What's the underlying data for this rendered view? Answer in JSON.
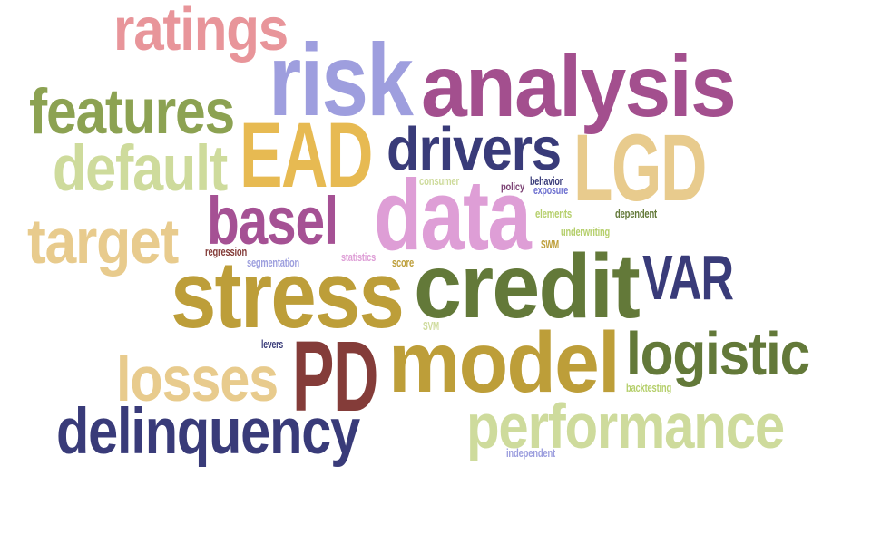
{
  "words": [
    {
      "text": "ratings",
      "color": "#e8959a"
    },
    {
      "text": "risk",
      "color": "#9e9ede"
    },
    {
      "text": "analysis",
      "color": "#a34f8e"
    },
    {
      "text": "features",
      "color": "#8ca252"
    },
    {
      "text": "EAD",
      "color": "#e7ba52"
    },
    {
      "text": "drivers",
      "color": "#393b79"
    },
    {
      "text": "LGD",
      "color": "#e8cb8d"
    },
    {
      "text": "default",
      "color": "#cedb9c"
    },
    {
      "text": "data",
      "color": "#de9ed6"
    },
    {
      "text": "basel",
      "color": "#a55194"
    },
    {
      "text": "target",
      "color": "#e8cb8d"
    },
    {
      "text": "stress",
      "color": "#bd9e39"
    },
    {
      "text": "credit",
      "color": "#637939"
    },
    {
      "text": "VAR",
      "color": "#393b79"
    },
    {
      "text": "PD",
      "color": "#843c39"
    },
    {
      "text": "model",
      "color": "#bd9e39"
    },
    {
      "text": "logistic",
      "color": "#637939"
    },
    {
      "text": "losses",
      "color": "#e8cb8d"
    },
    {
      "text": "delinquency",
      "color": "#393b79"
    },
    {
      "text": "performance",
      "color": "#cedb9c"
    },
    {
      "text": "consumer",
      "color": "#cedb9c"
    },
    {
      "text": "behavior",
      "color": "#393b79"
    },
    {
      "text": "policy",
      "color": "#7b4173"
    },
    {
      "text": "exposure",
      "color": "#6b6ecf"
    },
    {
      "text": "elements",
      "color": "#b5cf6b"
    },
    {
      "text": "dependent",
      "color": "#637939"
    },
    {
      "text": "underwriting",
      "color": "#b5cf6b"
    },
    {
      "text": "regression",
      "color": "#843c39"
    },
    {
      "text": "SWM",
      "color": "#bd9e39"
    },
    {
      "text": "segmentation",
      "color": "#9c9ede"
    },
    {
      "text": "statistics",
      "color": "#de9ed6"
    },
    {
      "text": "score",
      "color": "#bd9e39"
    },
    {
      "text": "SVM",
      "color": "#cedb9c"
    },
    {
      "text": "levers",
      "color": "#393b79"
    },
    {
      "text": "backtesting",
      "color": "#b5cf6b"
    },
    {
      "text": "independent",
      "color": "#9c9ede"
    }
  ]
}
